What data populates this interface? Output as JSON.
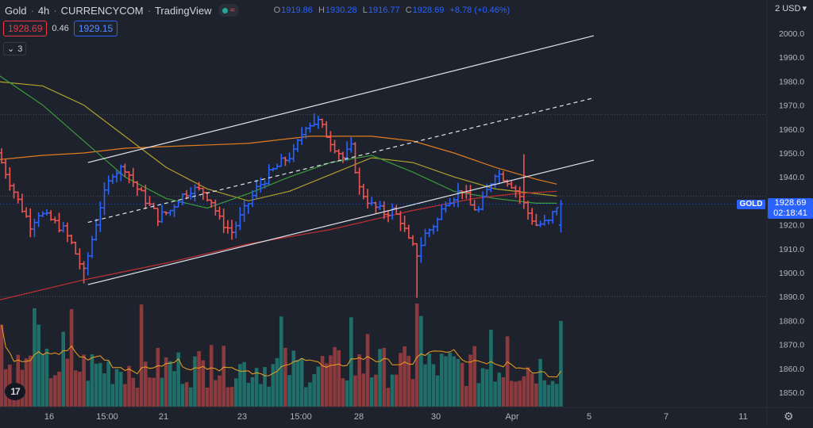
{
  "header": {
    "symbol": "Gold",
    "interval": "4h",
    "exchange": "CURRENCYCOM",
    "source": "TradingView",
    "ohlc": {
      "o": "1919.86",
      "h": "1930.28",
      "l": "1916.77",
      "c": "1928.69",
      "change": "+8.78 (+0.46%)"
    },
    "currency_selector": "2 USD"
  },
  "trade": {
    "sell_price": "1928.69",
    "spread": "0.46",
    "buy_price": "1929.15"
  },
  "indicators_toggle": {
    "count": "3"
  },
  "price_label": {
    "symbol": "GOLD",
    "price": "1928.69",
    "countdown": "02:18:41"
  },
  "colors": {
    "background": "#1e222d",
    "up": "#2962ff",
    "down": "#ef5350",
    "vol_up": "#26a69a",
    "vol_down": "#ef5350"
  },
  "chart_data": {
    "type": "bar",
    "ylim": [
      1845,
      2010
    ],
    "yticks": [
      1850,
      1860,
      1870,
      1880,
      1890,
      1900,
      1910,
      1920,
      1930,
      1940,
      1950,
      1960,
      1970,
      1980,
      1990,
      2000
    ],
    "xticks": [
      "16",
      "15:00",
      "21",
      "23",
      "15:00",
      "28",
      "30",
      "Apr",
      "5",
      "7",
      "11"
    ],
    "horizontal_lines": [
      1966,
      1932,
      1890
    ],
    "channel": {
      "upper": {
        "start": [
          21,
          1946
        ],
        "end": [
          144,
          1999
        ]
      },
      "middle": {
        "start": [
          21,
          1921
        ],
        "end": [
          144,
          1973
        ]
      },
      "lower": {
        "start": [
          21,
          1895
        ],
        "end": [
          144,
          1947
        ]
      }
    },
    "ohlc_series": [],
    "volume": {
      "values": [],
      "ma": []
    },
    "moving_averages": [
      {
        "color": "#b0a12c",
        "points": [
          [
            -2,
            1980
          ],
          [
            10,
            1978
          ],
          [
            20,
            1970
          ],
          [
            30,
            1957
          ],
          [
            40,
            1944
          ],
          [
            50,
            1935
          ],
          [
            60,
            1930
          ],
          [
            70,
            1934
          ],
          [
            80,
            1941
          ],
          [
            90,
            1948
          ],
          [
            100,
            1946
          ],
          [
            110,
            1940
          ],
          [
            120,
            1935
          ],
          [
            130,
            1933
          ],
          [
            135,
            1932
          ]
        ]
      },
      {
        "color": "#e07b1e",
        "points": [
          [
            -2,
            1947
          ],
          [
            10,
            1949
          ],
          [
            20,
            1950
          ],
          [
            30,
            1952
          ],
          [
            45,
            1953
          ],
          [
            60,
            1954
          ],
          [
            75,
            1957
          ],
          [
            90,
            1957
          ],
          [
            100,
            1955
          ],
          [
            110,
            1950
          ],
          [
            120,
            1944
          ],
          [
            130,
            1939
          ],
          [
            135,
            1937
          ]
        ]
      },
      {
        "color": "#3a9a3a",
        "points": [
          [
            -2,
            1984
          ],
          [
            10,
            1970
          ],
          [
            20,
            1955
          ],
          [
            30,
            1940
          ],
          [
            40,
            1931
          ],
          [
            50,
            1927
          ],
          [
            60,
            1933
          ],
          [
            70,
            1940
          ],
          [
            80,
            1946
          ],
          [
            90,
            1949
          ],
          [
            100,
            1942
          ],
          [
            110,
            1934
          ],
          [
            120,
            1931
          ],
          [
            130,
            1929
          ],
          [
            135,
            1929
          ]
        ]
      },
      {
        "color": "#c23030",
        "points": [
          [
            -2,
            1888
          ],
          [
            20,
            1897
          ],
          [
            40,
            1904
          ],
          [
            60,
            1912
          ],
          [
            80,
            1918
          ],
          [
            100,
            1926
          ],
          [
            115,
            1931
          ],
          [
            125,
            1933
          ],
          [
            135,
            1934
          ]
        ]
      }
    ]
  }
}
